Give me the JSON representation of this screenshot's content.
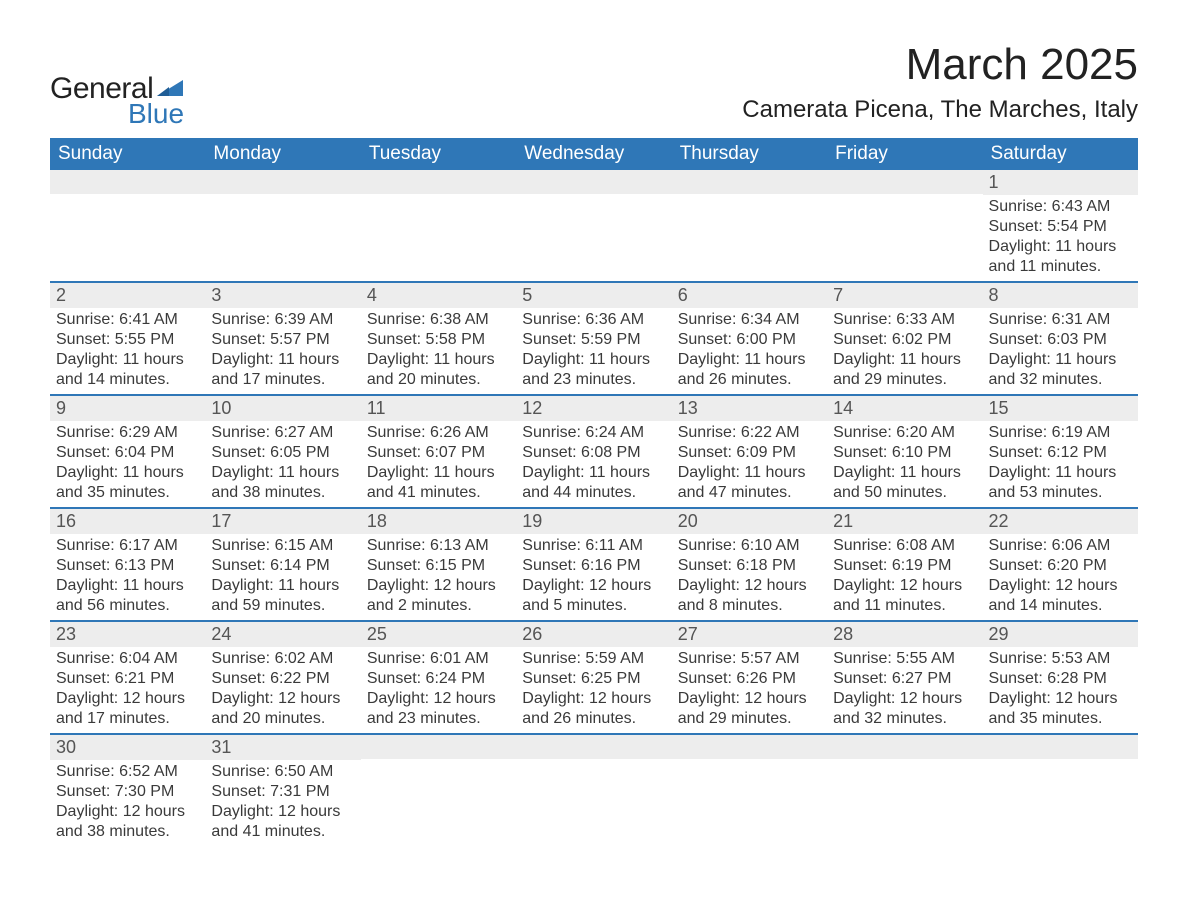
{
  "brand": {
    "line1": "General",
    "line2": "Blue",
    "text_color": "#222222",
    "accent_color": "#2f77b7"
  },
  "title": {
    "month_year": "March 2025",
    "location": "Camerata Picena, The Marches, Italy",
    "title_fontsize": 44,
    "location_fontsize": 24
  },
  "colors": {
    "header_bg": "#2f77b7",
    "header_text": "#ffffff",
    "row_divider": "#2f77b7",
    "daynum_bg": "#ededed",
    "body_text": "#3a3a3a",
    "page_bg": "#ffffff"
  },
  "weekdays": [
    "Sunday",
    "Monday",
    "Tuesday",
    "Wednesday",
    "Thursday",
    "Friday",
    "Saturday"
  ],
  "weeks": [
    [
      null,
      null,
      null,
      null,
      null,
      null,
      {
        "n": "1",
        "sr": "Sunrise: 6:43 AM",
        "ss": "Sunset: 5:54 PM",
        "dl": "Daylight: 11 hours and 11 minutes."
      }
    ],
    [
      {
        "n": "2",
        "sr": "Sunrise: 6:41 AM",
        "ss": "Sunset: 5:55 PM",
        "dl": "Daylight: 11 hours and 14 minutes."
      },
      {
        "n": "3",
        "sr": "Sunrise: 6:39 AM",
        "ss": "Sunset: 5:57 PM",
        "dl": "Daylight: 11 hours and 17 minutes."
      },
      {
        "n": "4",
        "sr": "Sunrise: 6:38 AM",
        "ss": "Sunset: 5:58 PM",
        "dl": "Daylight: 11 hours and 20 minutes."
      },
      {
        "n": "5",
        "sr": "Sunrise: 6:36 AM",
        "ss": "Sunset: 5:59 PM",
        "dl": "Daylight: 11 hours and 23 minutes."
      },
      {
        "n": "6",
        "sr": "Sunrise: 6:34 AM",
        "ss": "Sunset: 6:00 PM",
        "dl": "Daylight: 11 hours and 26 minutes."
      },
      {
        "n": "7",
        "sr": "Sunrise: 6:33 AM",
        "ss": "Sunset: 6:02 PM",
        "dl": "Daylight: 11 hours and 29 minutes."
      },
      {
        "n": "8",
        "sr": "Sunrise: 6:31 AM",
        "ss": "Sunset: 6:03 PM",
        "dl": "Daylight: 11 hours and 32 minutes."
      }
    ],
    [
      {
        "n": "9",
        "sr": "Sunrise: 6:29 AM",
        "ss": "Sunset: 6:04 PM",
        "dl": "Daylight: 11 hours and 35 minutes."
      },
      {
        "n": "10",
        "sr": "Sunrise: 6:27 AM",
        "ss": "Sunset: 6:05 PM",
        "dl": "Daylight: 11 hours and 38 minutes."
      },
      {
        "n": "11",
        "sr": "Sunrise: 6:26 AM",
        "ss": "Sunset: 6:07 PM",
        "dl": "Daylight: 11 hours and 41 minutes."
      },
      {
        "n": "12",
        "sr": "Sunrise: 6:24 AM",
        "ss": "Sunset: 6:08 PM",
        "dl": "Daylight: 11 hours and 44 minutes."
      },
      {
        "n": "13",
        "sr": "Sunrise: 6:22 AM",
        "ss": "Sunset: 6:09 PM",
        "dl": "Daylight: 11 hours and 47 minutes."
      },
      {
        "n": "14",
        "sr": "Sunrise: 6:20 AM",
        "ss": "Sunset: 6:10 PM",
        "dl": "Daylight: 11 hours and 50 minutes."
      },
      {
        "n": "15",
        "sr": "Sunrise: 6:19 AM",
        "ss": "Sunset: 6:12 PM",
        "dl": "Daylight: 11 hours and 53 minutes."
      }
    ],
    [
      {
        "n": "16",
        "sr": "Sunrise: 6:17 AM",
        "ss": "Sunset: 6:13 PM",
        "dl": "Daylight: 11 hours and 56 minutes."
      },
      {
        "n": "17",
        "sr": "Sunrise: 6:15 AM",
        "ss": "Sunset: 6:14 PM",
        "dl": "Daylight: 11 hours and 59 minutes."
      },
      {
        "n": "18",
        "sr": "Sunrise: 6:13 AM",
        "ss": "Sunset: 6:15 PM",
        "dl": "Daylight: 12 hours and 2 minutes."
      },
      {
        "n": "19",
        "sr": "Sunrise: 6:11 AM",
        "ss": "Sunset: 6:16 PM",
        "dl": "Daylight: 12 hours and 5 minutes."
      },
      {
        "n": "20",
        "sr": "Sunrise: 6:10 AM",
        "ss": "Sunset: 6:18 PM",
        "dl": "Daylight: 12 hours and 8 minutes."
      },
      {
        "n": "21",
        "sr": "Sunrise: 6:08 AM",
        "ss": "Sunset: 6:19 PM",
        "dl": "Daylight: 12 hours and 11 minutes."
      },
      {
        "n": "22",
        "sr": "Sunrise: 6:06 AM",
        "ss": "Sunset: 6:20 PM",
        "dl": "Daylight: 12 hours and 14 minutes."
      }
    ],
    [
      {
        "n": "23",
        "sr": "Sunrise: 6:04 AM",
        "ss": "Sunset: 6:21 PM",
        "dl": "Daylight: 12 hours and 17 minutes."
      },
      {
        "n": "24",
        "sr": "Sunrise: 6:02 AM",
        "ss": "Sunset: 6:22 PM",
        "dl": "Daylight: 12 hours and 20 minutes."
      },
      {
        "n": "25",
        "sr": "Sunrise: 6:01 AM",
        "ss": "Sunset: 6:24 PM",
        "dl": "Daylight: 12 hours and 23 minutes."
      },
      {
        "n": "26",
        "sr": "Sunrise: 5:59 AM",
        "ss": "Sunset: 6:25 PM",
        "dl": "Daylight: 12 hours and 26 minutes."
      },
      {
        "n": "27",
        "sr": "Sunrise: 5:57 AM",
        "ss": "Sunset: 6:26 PM",
        "dl": "Daylight: 12 hours and 29 minutes."
      },
      {
        "n": "28",
        "sr": "Sunrise: 5:55 AM",
        "ss": "Sunset: 6:27 PM",
        "dl": "Daylight: 12 hours and 32 minutes."
      },
      {
        "n": "29",
        "sr": "Sunrise: 5:53 AM",
        "ss": "Sunset: 6:28 PM",
        "dl": "Daylight: 12 hours and 35 minutes."
      }
    ],
    [
      {
        "n": "30",
        "sr": "Sunrise: 6:52 AM",
        "ss": "Sunset: 7:30 PM",
        "dl": "Daylight: 12 hours and 38 minutes."
      },
      {
        "n": "31",
        "sr": "Sunrise: 6:50 AM",
        "ss": "Sunset: 7:31 PM",
        "dl": "Daylight: 12 hours and 41 minutes."
      },
      null,
      null,
      null,
      null,
      null
    ]
  ]
}
